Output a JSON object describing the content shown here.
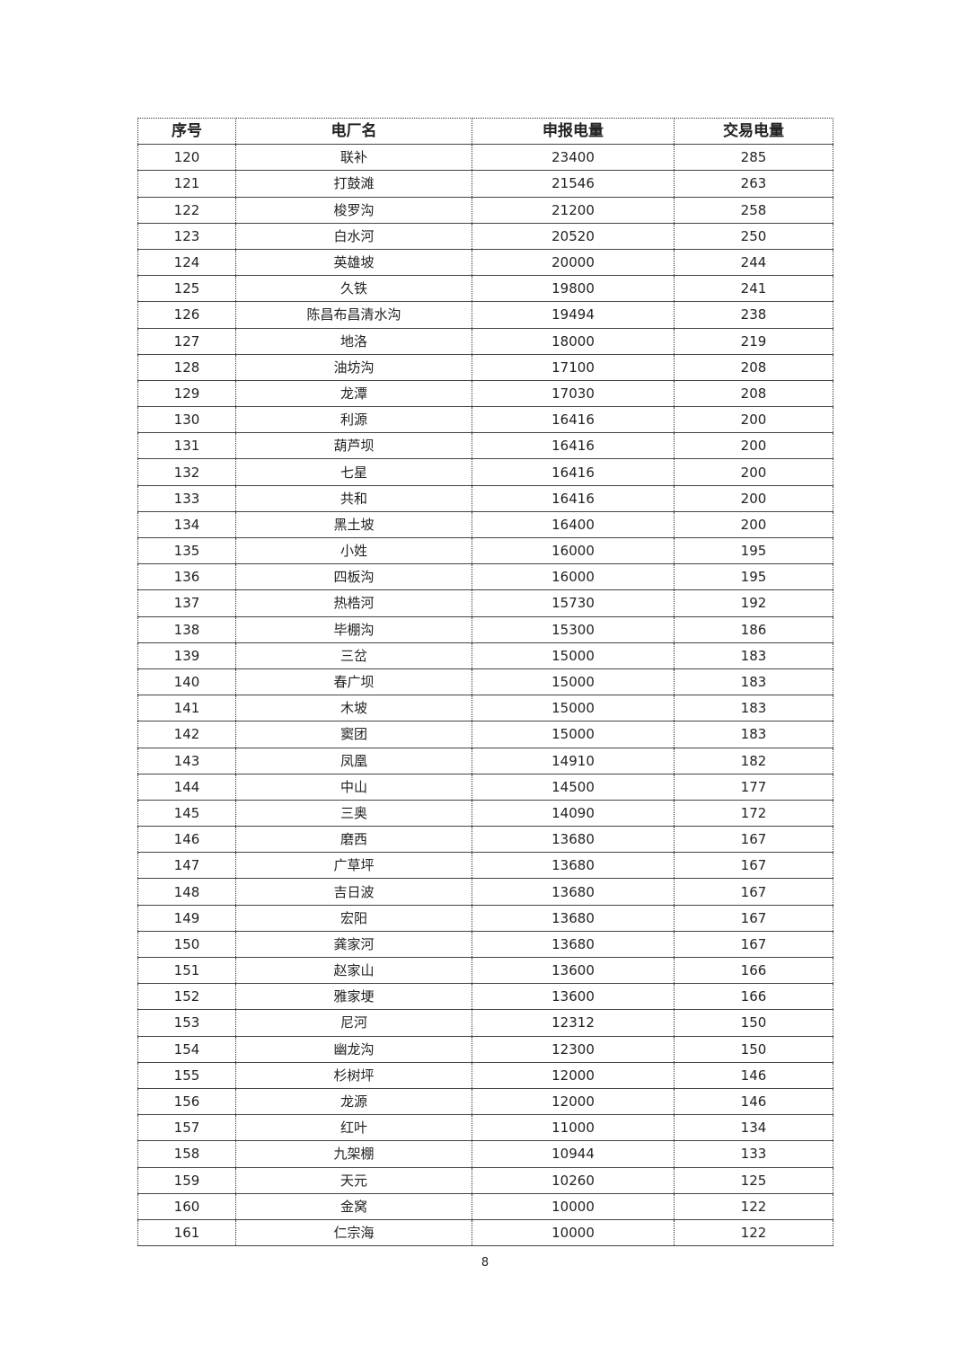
{
  "table": {
    "headers": [
      "序号",
      "电厂名",
      "申报电量",
      "交易电量"
    ],
    "rows": [
      [
        "120",
        "联补",
        "23400",
        "285"
      ],
      [
        "121",
        "打鼓滩",
        "21546",
        "263"
      ],
      [
        "122",
        "梭罗沟",
        "21200",
        "258"
      ],
      [
        "123",
        "白水河",
        "20520",
        "250"
      ],
      [
        "124",
        "英雄坡",
        "20000",
        "244"
      ],
      [
        "125",
        "久铁",
        "19800",
        "241"
      ],
      [
        "126",
        "陈昌布昌清水沟",
        "19494",
        "238"
      ],
      [
        "127",
        "地洛",
        "18000",
        "219"
      ],
      [
        "128",
        "油坊沟",
        "17100",
        "208"
      ],
      [
        "129",
        "龙潭",
        "17030",
        "208"
      ],
      [
        "130",
        "利源",
        "16416",
        "200"
      ],
      [
        "131",
        "葫芦坝",
        "16416",
        "200"
      ],
      [
        "132",
        "七星",
        "16416",
        "200"
      ],
      [
        "133",
        "共和",
        "16416",
        "200"
      ],
      [
        "134",
        "黑土坡",
        "16400",
        "200"
      ],
      [
        "135",
        "小姓",
        "16000",
        "195"
      ],
      [
        "136",
        "四板沟",
        "16000",
        "195"
      ],
      [
        "137",
        "热梏河",
        "15730",
        "192"
      ],
      [
        "138",
        "毕棚沟",
        "15300",
        "186"
      ],
      [
        "139",
        "三岔",
        "15000",
        "183"
      ],
      [
        "140",
        "春广坝",
        "15000",
        "183"
      ],
      [
        "141",
        "木坡",
        "15000",
        "183"
      ],
      [
        "142",
        "窦团",
        "15000",
        "183"
      ],
      [
        "143",
        "凤凰",
        "14910",
        "182"
      ],
      [
        "144",
        "中山",
        "14500",
        "177"
      ],
      [
        "145",
        "三奥",
        "14090",
        "172"
      ],
      [
        "146",
        "磨西",
        "13680",
        "167"
      ],
      [
        "147",
        "广草坪",
        "13680",
        "167"
      ],
      [
        "148",
        "吉日波",
        "13680",
        "167"
      ],
      [
        "149",
        "宏阳",
        "13680",
        "167"
      ],
      [
        "150",
        "龚家河",
        "13680",
        "167"
      ],
      [
        "151",
        "赵家山",
        "13600",
        "166"
      ],
      [
        "152",
        "雅家埂",
        "13600",
        "166"
      ],
      [
        "153",
        "尼河",
        "12312",
        "150"
      ],
      [
        "154",
        "幽龙沟",
        "12300",
        "150"
      ],
      [
        "155",
        "杉树坪",
        "12000",
        "146"
      ],
      [
        "156",
        "龙源",
        "12000",
        "146"
      ],
      [
        "157",
        "红叶",
        "11000",
        "134"
      ],
      [
        "158",
        "九架棚",
        "10944",
        "133"
      ],
      [
        "159",
        "天元",
        "10260",
        "125"
      ],
      [
        "160",
        "金窝",
        "10000",
        "122"
      ],
      [
        "161",
        "仁宗海",
        "10000",
        "122"
      ]
    ]
  },
  "page_number": "8"
}
